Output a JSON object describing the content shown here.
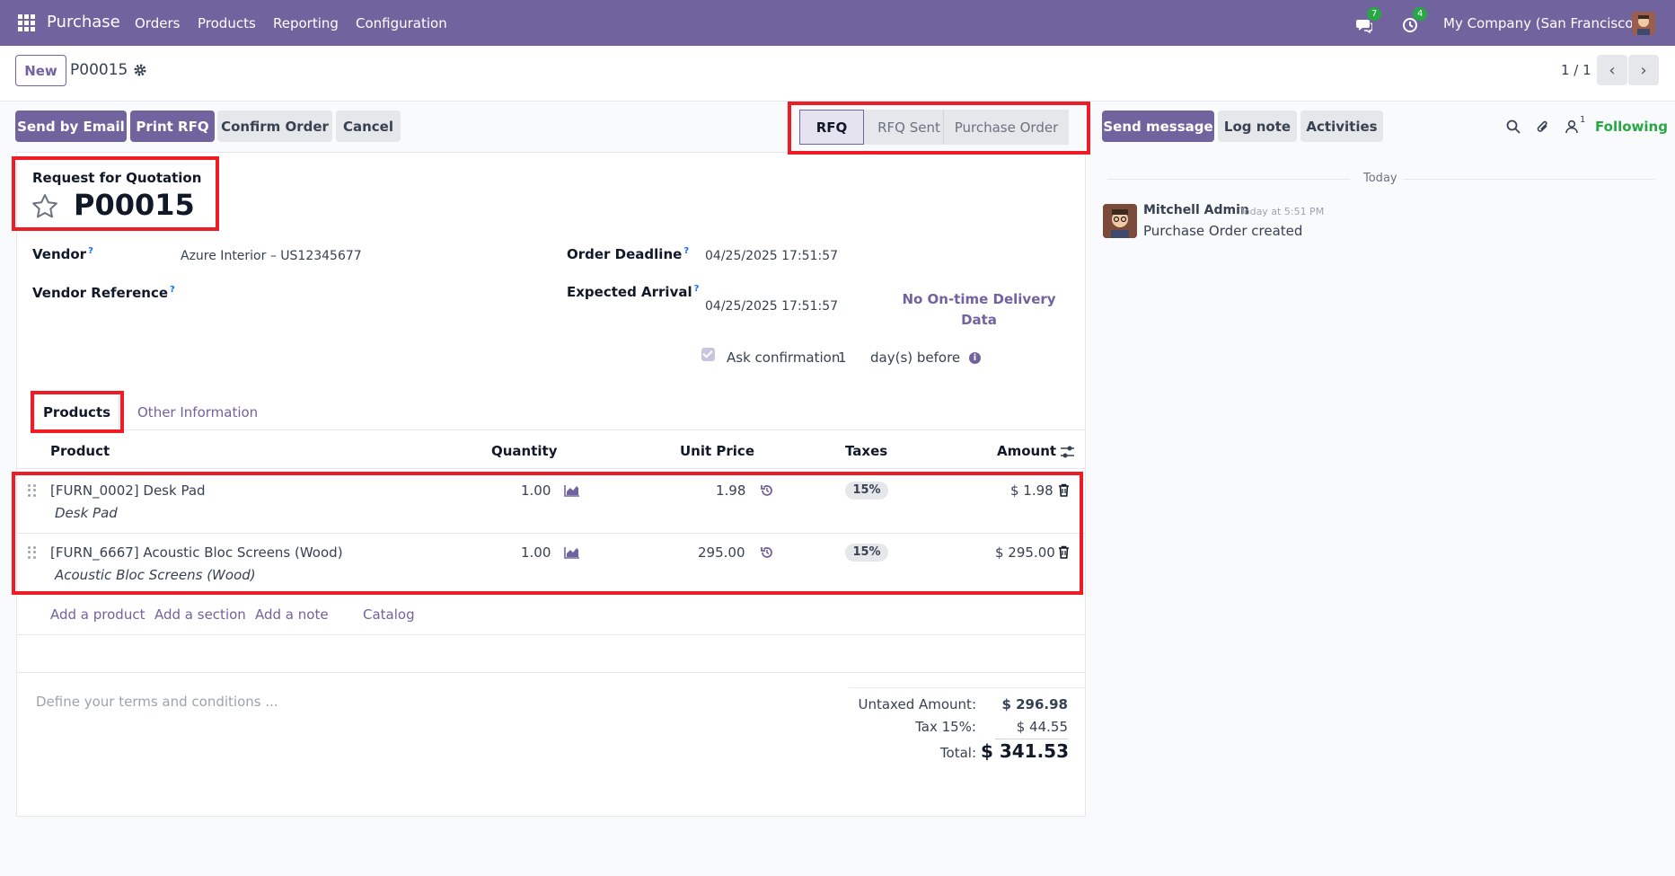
{
  "navbar": {
    "app_name": "Purchase",
    "menu": [
      "Orders",
      "Products",
      "Reporting",
      "Configuration"
    ],
    "messages_count": "7",
    "activities_count": "4",
    "company": "My Company (San Francisco)"
  },
  "control": {
    "new_label": "New",
    "record_name": "P00015",
    "pager": "1 / 1"
  },
  "actions": {
    "send_email": "Send by Email",
    "print_rfq": "Print RFQ",
    "confirm_order": "Confirm Order",
    "cancel": "Cancel"
  },
  "stages": [
    "RFQ",
    "RFQ Sent",
    "Purchase Order"
  ],
  "active_stage": "RFQ",
  "form": {
    "doc_type": "Request for Quotation",
    "title": "P00015",
    "vendor_label": "Vendor",
    "vendor_value": "Azure Interior – US12345677",
    "vendor_ref_label": "Vendor Reference",
    "order_deadline_label": "Order Deadline",
    "order_deadline_value": "04/25/2025 17:51:57",
    "expected_arrival_label": "Expected Arrival",
    "expected_arrival_value": "04/25/2025 17:51:57",
    "ontime_text": "No On-time Delivery Data",
    "ask_confirmation_label": "Ask confirmation",
    "ask_confirmation_days": "1",
    "days_before": "day(s) before",
    "help_mark": "?",
    "info_mark": "i"
  },
  "tabs": [
    "Products",
    "Other Information"
  ],
  "table": {
    "headers": [
      "Product",
      "Quantity",
      "Unit Price",
      "Taxes",
      "Amount"
    ],
    "rows": [
      {
        "product": "[FURN_0002] Desk Pad",
        "description": "Desk Pad",
        "qty": "1.00",
        "unit_price": "1.98",
        "taxes": "15%",
        "amount": "$ 1.98"
      },
      {
        "product": "[FURN_6667] Acoustic Bloc Screens (Wood)",
        "description": "Acoustic Bloc Screens (Wood)",
        "qty": "1.00",
        "unit_price": "295.00",
        "taxes": "15%",
        "amount": "$ 295.00"
      }
    ],
    "add_product": "Add a product",
    "add_section": "Add a section",
    "add_note": "Add a note",
    "catalog": "Catalog"
  },
  "terms_placeholder": "Define your terms and conditions ...",
  "totals": {
    "untaxed_label": "Untaxed Amount:",
    "untaxed_value": "$ 296.98",
    "tax_label": "Tax 15%:",
    "tax_value": "$ 44.55",
    "total_label": "Total:",
    "total_value": "$ 341.53"
  },
  "chatter": {
    "send_message": "Send message",
    "log_note": "Log note",
    "activities": "Activities",
    "followers_count": "1",
    "following": "Following",
    "today": "Today",
    "author": "Mitchell Admin",
    "time": "Today at 5:51 PM",
    "message": "Purchase Order created"
  },
  "colors": {
    "brand": "#71639e",
    "highlight": "#ee1c24",
    "following": "#28a745"
  }
}
